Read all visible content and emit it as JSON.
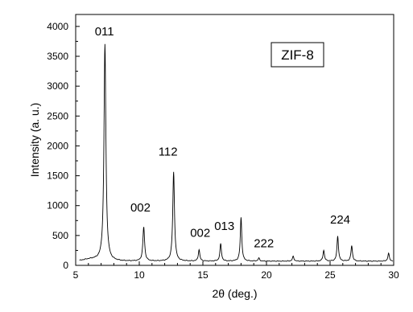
{
  "chart_data": {
    "type": "line",
    "xlabel": "2θ (deg.)",
    "ylabel": "Intensity (a. u.)",
    "xlim": [
      5,
      30
    ],
    "ylim": [
      0,
      4200
    ],
    "xticks": [
      5,
      10,
      15,
      20,
      25,
      30
    ],
    "yticks": [
      0,
      500,
      1000,
      1500,
      2000,
      2500,
      3000,
      3500,
      4000
    ],
    "grid": false,
    "sample_label": "ZIF-8",
    "baseline": 70,
    "peaks": [
      {
        "x": 7.3,
        "y": 3700,
        "w": 0.09
      },
      {
        "x": 10.35,
        "y": 640,
        "w": 0.08
      },
      {
        "x": 12.7,
        "y": 1560,
        "w": 0.08
      },
      {
        "x": 14.7,
        "y": 260,
        "w": 0.07
      },
      {
        "x": 16.4,
        "y": 360,
        "w": 0.07
      },
      {
        "x": 18.0,
        "y": 800,
        "w": 0.07
      },
      {
        "x": 19.4,
        "y": 120,
        "w": 0.07
      },
      {
        "x": 22.1,
        "y": 150,
        "w": 0.07
      },
      {
        "x": 24.5,
        "y": 250,
        "w": 0.07
      },
      {
        "x": 25.6,
        "y": 490,
        "w": 0.07
      },
      {
        "x": 26.7,
        "y": 330,
        "w": 0.07
      },
      {
        "x": 29.6,
        "y": 200,
        "w": 0.07
      }
    ],
    "annotations": [
      {
        "text": "011",
        "x": 6.5,
        "y": 3850
      },
      {
        "text": "002",
        "x": 9.3,
        "y": 900
      },
      {
        "text": "112",
        "x": 11.5,
        "y": 1840
      },
      {
        "text": "002",
        "x": 14.0,
        "y": 480
      },
      {
        "text": "013",
        "x": 15.9,
        "y": 590
      },
      {
        "text": "222",
        "x": 19.0,
        "y": 300
      },
      {
        "text": "224",
        "x": 25.0,
        "y": 700
      }
    ]
  }
}
